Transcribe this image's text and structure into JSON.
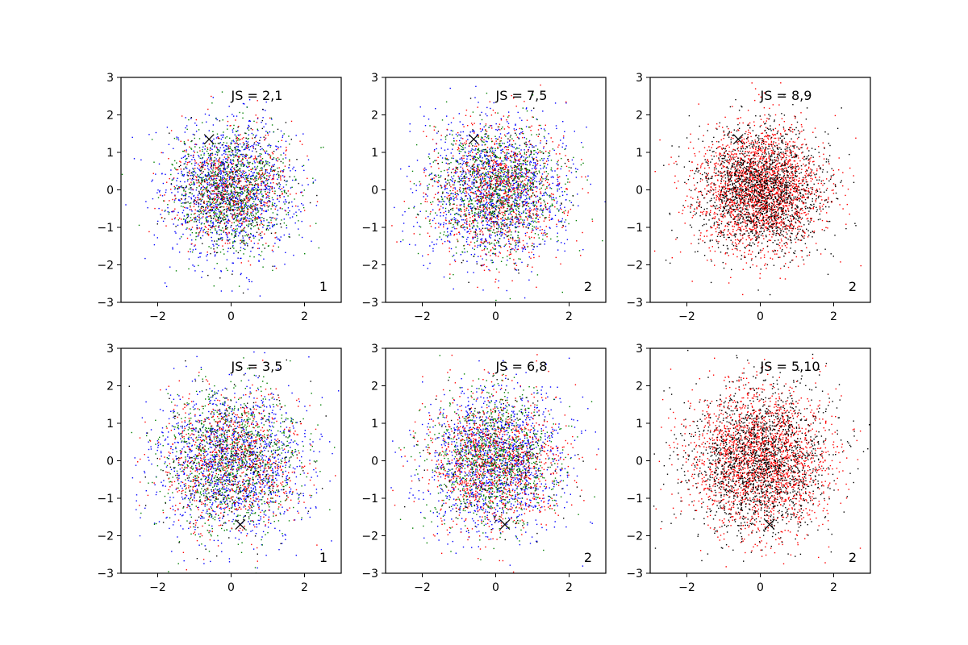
{
  "figure": {
    "rows": 2,
    "cols": 3
  },
  "chart_data": [
    {
      "type": "scatter",
      "annotation": "JS = 2,1",
      "corner_label": "1",
      "xlim": [
        -3,
        3
      ],
      "ylim": [
        -3,
        3
      ],
      "xticks": [
        -2,
        0,
        2
      ],
      "yticks": [
        -3,
        -2,
        -1,
        0,
        1,
        2,
        3
      ],
      "xtick_labels": [
        "−2",
        "0",
        "2"
      ],
      "ytick_labels": [
        "−3",
        "−2",
        "−1",
        "0",
        "1",
        "2",
        "3"
      ],
      "marker": {
        "x": -0.6,
        "y": 1.35,
        "symbol": "x",
        "color": "#000000"
      },
      "series": [
        {
          "color": "#0000ff",
          "distribution": "gaussian",
          "mean": [
            0,
            0
          ],
          "std": [
            0.9,
            0.9
          ],
          "count": 1200
        },
        {
          "color": "#008000",
          "distribution": "gaussian",
          "mean": [
            0,
            0
          ],
          "std": [
            0.8,
            0.8
          ],
          "count": 900
        },
        {
          "color": "#ff0000",
          "distribution": "gaussian",
          "mean": [
            0,
            0
          ],
          "std": [
            0.8,
            0.8
          ],
          "count": 600
        },
        {
          "color": "#000000",
          "distribution": "gaussian",
          "mean": [
            0,
            0
          ],
          "std": [
            0.8,
            0.8
          ],
          "count": 300
        }
      ]
    },
    {
      "type": "scatter",
      "annotation": "JS = 7,5",
      "corner_label": "2",
      "xlim": [
        -3,
        3
      ],
      "ylim": [
        -3,
        3
      ],
      "xticks": [
        -2,
        0,
        2
      ],
      "yticks": [
        -3,
        -2,
        -1,
        0,
        1,
        2,
        3
      ],
      "xtick_labels": [
        "−2",
        "0",
        "2"
      ],
      "ytick_labels": [
        "−3",
        "−2",
        "−1",
        "0",
        "1",
        "2",
        "3"
      ],
      "marker": {
        "x": -0.6,
        "y": 1.35,
        "symbol": "x",
        "color": "#000000"
      },
      "series": [
        {
          "color": "#0000ff",
          "distribution": "gaussian",
          "mean": [
            0,
            0
          ],
          "std": [
            0.95,
            0.95
          ],
          "count": 1300
        },
        {
          "color": "#ff0000",
          "distribution": "gaussian",
          "mean": [
            0,
            0
          ],
          "std": [
            0.9,
            0.9
          ],
          "count": 1000
        },
        {
          "color": "#008000",
          "distribution": "gaussian",
          "mean": [
            0,
            0
          ],
          "std": [
            0.9,
            0.9
          ],
          "count": 900
        },
        {
          "color": "#000000",
          "distribution": "gaussian",
          "mean": [
            0,
            0
          ],
          "std": [
            0.9,
            0.9
          ],
          "count": 200
        }
      ]
    },
    {
      "type": "scatter",
      "annotation": "JS = 8,9",
      "corner_label": "2",
      "xlim": [
        -3,
        3
      ],
      "ylim": [
        -3,
        3
      ],
      "xticks": [
        -2,
        0,
        2
      ],
      "yticks": [
        -3,
        -2,
        -1,
        0,
        1,
        2,
        3
      ],
      "xtick_labels": [
        "−2",
        "0",
        "2"
      ],
      "ytick_labels": [
        "−3",
        "−2",
        "−1",
        "0",
        "1",
        "2",
        "3"
      ],
      "marker": {
        "x": -0.6,
        "y": 1.35,
        "symbol": "x",
        "color": "#000000"
      },
      "series": [
        {
          "color": "#ff0000",
          "distribution": "gaussian",
          "mean": [
            0,
            0
          ],
          "std": [
            0.85,
            0.85
          ],
          "count": 2200
        },
        {
          "color": "#000000",
          "distribution": "gaussian",
          "mean": [
            0,
            0
          ],
          "std": [
            0.85,
            0.85
          ],
          "count": 1700
        }
      ]
    },
    {
      "type": "scatter",
      "annotation": "JS = 3,5",
      "corner_label": "1",
      "xlim": [
        -3,
        3
      ],
      "ylim": [
        -3,
        3
      ],
      "xticks": [
        -2,
        0,
        2
      ],
      "yticks": [
        -3,
        -2,
        -1,
        0,
        1,
        2,
        3
      ],
      "xtick_labels": [
        "−2",
        "0",
        "2"
      ],
      "ytick_labels": [
        "−3",
        "−2",
        "−1",
        "0",
        "1",
        "2",
        "3"
      ],
      "marker": {
        "x": 0.25,
        "y": -1.7,
        "symbol": "x",
        "color": "#000000"
      },
      "series": [
        {
          "color": "#0000ff",
          "distribution": "gaussian",
          "mean": [
            0,
            0
          ],
          "std": [
            1.0,
            1.0
          ],
          "count": 1300
        },
        {
          "color": "#008000",
          "distribution": "gaussian",
          "mean": [
            0,
            0
          ],
          "std": [
            0.95,
            0.95
          ],
          "count": 1000
        },
        {
          "color": "#ff0000",
          "distribution": "gaussian",
          "mean": [
            0,
            0
          ],
          "std": [
            0.95,
            0.95
          ],
          "count": 800
        },
        {
          "color": "#000000",
          "distribution": "gaussian",
          "mean": [
            0,
            0
          ],
          "std": [
            0.95,
            0.95
          ],
          "count": 300
        }
      ]
    },
    {
      "type": "scatter",
      "annotation": "JS = 6,8",
      "corner_label": "2",
      "xlim": [
        -3,
        3
      ],
      "ylim": [
        -3,
        3
      ],
      "xticks": [
        -2,
        0,
        2
      ],
      "yticks": [
        -3,
        -2,
        -1,
        0,
        1,
        2,
        3
      ],
      "xtick_labels": [
        "−2",
        "0",
        "2"
      ],
      "ytick_labels": [
        "−3",
        "−2",
        "−1",
        "0",
        "1",
        "2",
        "3"
      ],
      "marker": {
        "x": 0.25,
        "y": -1.7,
        "symbol": "x",
        "color": "#000000"
      },
      "series": [
        {
          "color": "#0000ff",
          "distribution": "gaussian",
          "mean": [
            0,
            0
          ],
          "std": [
            0.95,
            0.95
          ],
          "count": 1300
        },
        {
          "color": "#ff0000",
          "distribution": "gaussian",
          "mean": [
            0,
            0
          ],
          "std": [
            0.9,
            0.9
          ],
          "count": 1100
        },
        {
          "color": "#008000",
          "distribution": "gaussian",
          "mean": [
            0,
            0
          ],
          "std": [
            0.9,
            0.9
          ],
          "count": 900
        },
        {
          "color": "#000000",
          "distribution": "gaussian",
          "mean": [
            0,
            0
          ],
          "std": [
            0.9,
            0.9
          ],
          "count": 200
        }
      ]
    },
    {
      "type": "scatter",
      "annotation": "JS = 5,10",
      "corner_label": "2",
      "xlim": [
        -3,
        3
      ],
      "ylim": [
        -3,
        3
      ],
      "xticks": [
        -2,
        0,
        2
      ],
      "yticks": [
        -3,
        -2,
        -1,
        0,
        1,
        2,
        3
      ],
      "xtick_labels": [
        "−2",
        "0",
        "2"
      ],
      "ytick_labels": [
        "−3",
        "−2",
        "−1",
        "0",
        "1",
        "2",
        "3"
      ],
      "marker": {
        "x": 0.25,
        "y": -1.7,
        "symbol": "x",
        "color": "#000000"
      },
      "series": [
        {
          "color": "#ff0000",
          "distribution": "gaussian",
          "mean": [
            0,
            0
          ],
          "std": [
            0.95,
            0.95
          ],
          "count": 2100
        },
        {
          "color": "#000000",
          "distribution": "gaussian",
          "mean": [
            0,
            0
          ],
          "std": [
            0.95,
            0.95
          ],
          "count": 1700
        }
      ]
    }
  ]
}
